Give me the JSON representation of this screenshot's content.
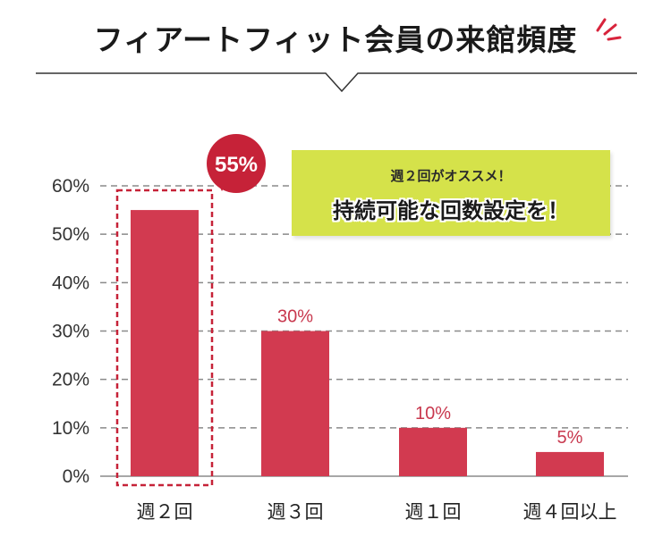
{
  "header": {
    "title": "フィアートフィット会員の来館頻度"
  },
  "callout": {
    "line1": "週２回がオススメ！",
    "line2": "持続可能な回数設定を！"
  },
  "colors": {
    "bar": "#d23a50",
    "label": "#c8384e",
    "badge": "#c62238",
    "callout_bg": "#d5e24a",
    "grid": "#8a8a8a"
  },
  "chart_data": {
    "type": "bar",
    "categories": [
      "週２回",
      "週３回",
      "週１回",
      "週４回以上"
    ],
    "values": [
      55,
      30,
      10,
      5
    ],
    "value_labels": [
      "55%",
      "30%",
      "10%",
      "5%"
    ],
    "yticks": [
      "0%",
      "10%",
      "20%",
      "30%",
      "40%",
      "50%",
      "60%"
    ],
    "ylim": [
      0,
      60
    ],
    "grid": true,
    "highlight_index": 0,
    "title": "",
    "xlabel": "",
    "ylabel": ""
  }
}
